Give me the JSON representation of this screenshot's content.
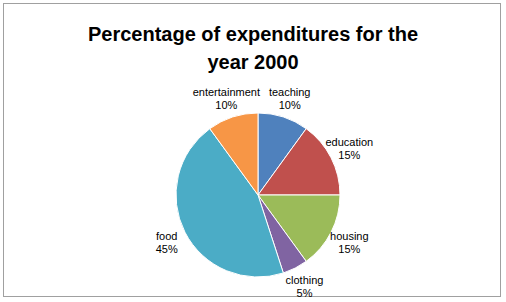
{
  "chart_data": {
    "type": "pie",
    "title": "Percentage of expenditures for the year 2000",
    "categories": [
      "teaching",
      "education",
      "housing",
      "clothing",
      "food",
      "entertainment"
    ],
    "values": [
      10,
      15,
      15,
      5,
      45,
      10
    ],
    "value_labels": [
      "10%",
      "15%",
      "15%",
      "5%",
      "45%",
      "10%"
    ],
    "colors": [
      "#4F81BD",
      "#C0504D",
      "#9BBB59",
      "#8064A2",
      "#4BACC6",
      "#F79646"
    ]
  }
}
